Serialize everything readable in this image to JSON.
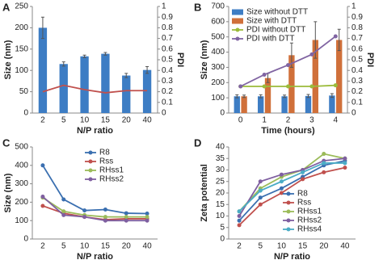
{
  "chart_data": [
    {
      "type": "bar",
      "label": "A",
      "x_label": "N/P ratio",
      "y_label": "Size (nm)",
      "y2_label": "PDI",
      "categories": [
        "2",
        "5",
        "10",
        "15",
        "20",
        "40"
      ],
      "ylim": [
        0,
        250
      ],
      "yticks": [
        0,
        50,
        100,
        150,
        200,
        250
      ],
      "y2lim": [
        0,
        1
      ],
      "y2ticks": [
        0,
        0.1,
        0.2,
        0.3,
        0.4,
        0.5,
        0.6,
        0.7,
        0.8,
        0.9,
        1
      ],
      "series": [
        {
          "name": "Size",
          "type": "bar",
          "color": "#3d7dc4",
          "values": [
            200,
            115,
            133,
            139,
            88,
            101
          ],
          "errors": [
            25,
            5,
            3,
            3,
            5,
            8
          ]
        },
        {
          "name": "PDI",
          "type": "line",
          "axis": "y2",
          "color": "#c0504d",
          "values": [
            0.2,
            0.26,
            0.22,
            0.19,
            0.21,
            0.21
          ]
        }
      ]
    },
    {
      "type": "bar",
      "label": "B",
      "x_label": "Time (hours)",
      "y_label": "Size (nm)",
      "y2_label": "PDI",
      "categories": [
        "0",
        "1",
        "2",
        "3",
        "4"
      ],
      "legend": "upper left",
      "markers": true,
      "ylim": [
        0,
        700
      ],
      "yticks": [
        0,
        100,
        200,
        300,
        400,
        500,
        600,
        700
      ],
      "y2lim": [
        0,
        1
      ],
      "y2ticks": [
        0,
        0.1,
        0.2,
        0.3,
        0.4,
        0.5,
        0.6,
        0.7,
        0.8,
        0.9,
        1
      ],
      "series": [
        {
          "name": "Size without DTT",
          "type": "bar",
          "color": "#3d7dc4",
          "values": [
            110,
            110,
            110,
            112,
            115
          ],
          "errors": [
            10,
            10,
            8,
            10,
            12
          ]
        },
        {
          "name": "Size with DTT",
          "type": "bar",
          "color": "#d0703a",
          "values": [
            110,
            230,
            380,
            480,
            480
          ],
          "errors": [
            8,
            30,
            80,
            120,
            70
          ]
        },
        {
          "name": "PDI without DTT",
          "type": "line",
          "axis": "y2",
          "color": "#9bbb3a",
          "values": [
            0.25,
            0.25,
            0.25,
            0.25,
            0.26
          ]
        },
        {
          "name": "PDI with DTT",
          "type": "line",
          "axis": "y2",
          "color": "#8064a2",
          "values": [
            0.25,
            0.36,
            0.45,
            0.55,
            0.72
          ]
        }
      ]
    },
    {
      "type": "line",
      "label": "C",
      "x_label": "N/P ratio",
      "y_label": "Size (nm)",
      "categories": [
        "2",
        "5",
        "10",
        "15",
        "20",
        "40"
      ],
      "legend": "upper right",
      "markers": true,
      "ylim": [
        0,
        500
      ],
      "yticks": [
        0,
        100,
        200,
        300,
        400,
        500
      ],
      "series": [
        {
          "name": "R8",
          "color": "#3a6fb0",
          "values": [
            400,
            215,
            155,
            160,
            140,
            138
          ]
        },
        {
          "name": "Rss",
          "color": "#c0504d",
          "values": [
            180,
            140,
            120,
            105,
            110,
            110
          ]
        },
        {
          "name": "RHss1",
          "color": "#9bbb59",
          "values": [
            225,
            150,
            130,
            120,
            120,
            120
          ]
        },
        {
          "name": "RHss2",
          "color": "#7f5fa0",
          "values": [
            230,
            130,
            120,
            100,
            100,
            100
          ]
        }
      ]
    },
    {
      "type": "line",
      "label": "D",
      "x_label": "N/P ratio",
      "y_label": "Zeta potential",
      "categories": [
        "2",
        "5",
        "10",
        "15",
        "20",
        "40"
      ],
      "legend": "lower right",
      "markers": true,
      "ylim": [
        0,
        40
      ],
      "yticks": [
        0,
        5,
        10,
        15,
        20,
        25,
        30,
        35,
        40
      ],
      "series": [
        {
          "name": "R8",
          "color": "#3a6fb0",
          "values": [
            8,
            18,
            22,
            27,
            32,
            34
          ]
        },
        {
          "name": "Rss",
          "color": "#c0504d",
          "values": [
            6,
            15,
            20,
            26,
            29,
            31
          ]
        },
        {
          "name": "RHss1",
          "color": "#9bbb59",
          "values": [
            12,
            22,
            27,
            30,
            37,
            35
          ]
        },
        {
          "name": "RHss2",
          "color": "#7f5fa0",
          "values": [
            10,
            25,
            28,
            30,
            34,
            35
          ]
        },
        {
          "name": "RHss4",
          "color": "#4bacc6",
          "values": [
            12,
            21,
            25,
            29,
            33,
            33
          ]
        }
      ]
    }
  ]
}
